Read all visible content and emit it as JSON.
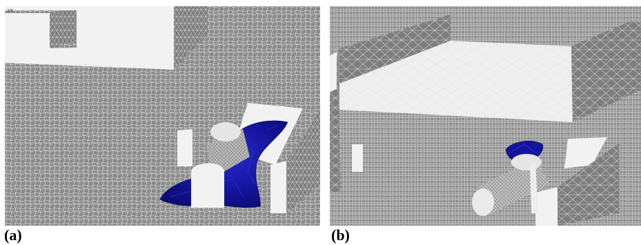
{
  "figure": {
    "panels": [
      {
        "id": "a",
        "caption": "(a)",
        "corner_mark": "ıo",
        "description_colors": {
          "mesh": "#8a8a8a",
          "flat_face": "#f2f2f2",
          "fluid": "#1a1aa8"
        }
      },
      {
        "id": "b",
        "caption": "(b)",
        "description_colors": {
          "mesh": "#8a8a8a",
          "flat_face": "#f2f2f2",
          "fluid": "#1a1aa8"
        }
      }
    ]
  }
}
